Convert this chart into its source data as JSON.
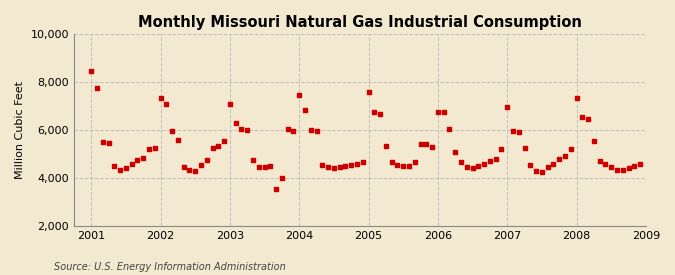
{
  "title": "Monthly Missouri Natural Gas Industrial Consumption",
  "ylabel": "Million Cubic Feet",
  "source": "Source: U.S. Energy Information Administration",
  "background_color": "#f3e8d0",
  "plot_bg_color": "#f3e8d0",
  "marker_color": "#cc0000",
  "ylim": [
    2000,
    10000
  ],
  "yticks": [
    2000,
    4000,
    6000,
    8000,
    10000
  ],
  "grid_color": "#bbbbbb",
  "dates": [
    2001.0,
    2001.083,
    2001.167,
    2001.25,
    2001.333,
    2001.417,
    2001.5,
    2001.583,
    2001.667,
    2001.75,
    2001.833,
    2001.917,
    2002.0,
    2002.083,
    2002.167,
    2002.25,
    2002.333,
    2002.417,
    2002.5,
    2002.583,
    2002.667,
    2002.75,
    2002.833,
    2002.917,
    2003.0,
    2003.083,
    2003.167,
    2003.25,
    2003.333,
    2003.417,
    2003.5,
    2003.583,
    2003.667,
    2003.75,
    2003.833,
    2003.917,
    2004.0,
    2004.083,
    2004.167,
    2004.25,
    2004.333,
    2004.417,
    2004.5,
    2004.583,
    2004.667,
    2004.75,
    2004.833,
    2004.917,
    2005.0,
    2005.083,
    2005.167,
    2005.25,
    2005.333,
    2005.417,
    2005.5,
    2005.583,
    2005.667,
    2005.75,
    2005.833,
    2005.917,
    2006.0,
    2006.083,
    2006.167,
    2006.25,
    2006.333,
    2006.417,
    2006.5,
    2006.583,
    2006.667,
    2006.75,
    2006.833,
    2006.917,
    2007.0,
    2007.083,
    2007.167,
    2007.25,
    2007.333,
    2007.417,
    2007.5,
    2007.583,
    2007.667,
    2007.75,
    2007.833,
    2007.917,
    2008.0,
    2008.083,
    2008.167,
    2008.25,
    2008.333,
    2008.417,
    2008.5,
    2008.583,
    2008.667,
    2008.75,
    2008.833,
    2008.917
  ],
  "values": [
    8450,
    7750,
    5500,
    5450,
    4500,
    4350,
    4400,
    4600,
    4750,
    4850,
    5200,
    5250,
    7350,
    7100,
    5950,
    5600,
    4450,
    4350,
    4300,
    4550,
    4750,
    5250,
    5350,
    5550,
    7100,
    6300,
    6050,
    6000,
    4750,
    4450,
    4450,
    4500,
    3550,
    4000,
    6050,
    5950,
    7450,
    6850,
    6000,
    5950,
    4550,
    4450,
    4400,
    4450,
    4500,
    4550,
    4600,
    4650,
    7600,
    6750,
    6650,
    5350,
    4650,
    4550,
    4500,
    4500,
    4650,
    5400,
    5400,
    5300,
    6750,
    6750,
    6050,
    5100,
    4650,
    4450,
    4400,
    4500,
    4600,
    4700,
    4800,
    5200,
    6950,
    5950,
    5900,
    5250,
    4550,
    4300,
    4250,
    4450,
    4600,
    4800,
    4900,
    5200,
    7350,
    6550,
    6450,
    5550,
    4700,
    4600,
    4450,
    4350,
    4350,
    4400,
    4500,
    4600
  ],
  "xticks": [
    2001,
    2002,
    2003,
    2004,
    2005,
    2006,
    2007,
    2008,
    2009
  ],
  "xlim": [
    2000.75,
    2009.0
  ]
}
